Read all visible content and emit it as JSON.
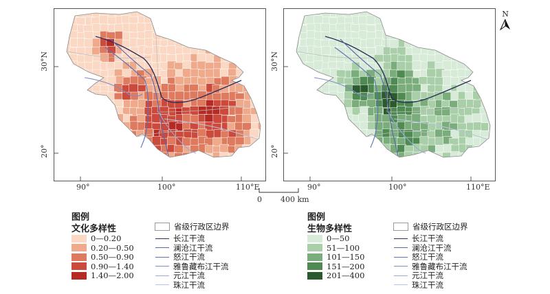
{
  "maps": [
    {
      "xticks": [
        "90°",
        "100°",
        "110°E"
      ],
      "yticks": [
        "30°N",
        "20°"
      ],
      "palette": [
        "#fbd8c4",
        "#efaa8c",
        "#de7a5e",
        "#cb4a3c",
        "#b52a25"
      ]
    },
    {
      "xticks": [
        "90°",
        "100°",
        "110°E"
      ],
      "yticks": [
        "30°N",
        "20°"
      ],
      "palette": [
        "#d7ebd8",
        "#a9cfa9",
        "#7bac7c",
        "#4f8a52",
        "#2b5a2e"
      ]
    }
  ],
  "scale_bar": {
    "zero": "0",
    "max": "400 km"
  },
  "north_label": "N",
  "legend_culture": {
    "heading": "图例",
    "title": "文化多样性",
    "classes": [
      "0—0.20",
      "0.20—0.50",
      "0.50—0.90",
      "0.90—1.40",
      "1.40—2.00"
    ],
    "colors": [
      "#fbd8c4",
      "#efaa8c",
      "#de7a5e",
      "#cb4a3c",
      "#b52a25"
    ]
  },
  "legend_bio": {
    "heading": "图例",
    "title": "生物多样性",
    "classes": [
      "0—50",
      "51—100",
      "101—150",
      "151—200",
      "201—400"
    ],
    "colors": [
      "#d7ebd8",
      "#a9cfa9",
      "#7bac7c",
      "#4f8a52",
      "#2b5a2e"
    ]
  },
  "line_legend": {
    "boundary": "省级行政区边界",
    "rivers": [
      {
        "label": "长江干流",
        "color": "#2c2f5a"
      },
      {
        "label": "澜沧江干流",
        "color": "#5a66a8"
      },
      {
        "label": "怒江干流",
        "color": "#5b72b8"
      },
      {
        "label": "雅鲁藏布江干流",
        "color": "#7a8ec6"
      },
      {
        "label": "元江干流",
        "color": "#9aa9d4"
      },
      {
        "label": "珠江干流",
        "color": "#b7c3e2"
      }
    ]
  }
}
